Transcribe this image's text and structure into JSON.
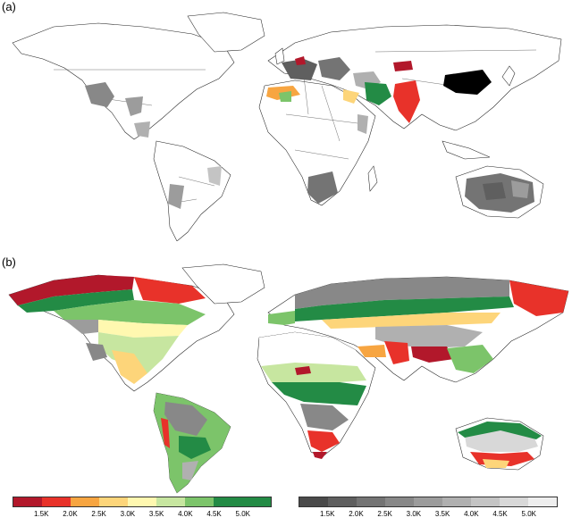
{
  "panels": {
    "a": {
      "label": "(a)"
    },
    "b": {
      "label": "(b)"
    }
  },
  "legend_color": {
    "colors": [
      "#b2182b",
      "#e8322a",
      "#f7a541",
      "#fdd57a",
      "#fff8b0",
      "#c7e6a0",
      "#7cc46a",
      "#238b45"
    ],
    "ticks": [
      "1.5K",
      "2.0K",
      "2.5K",
      "3.0K",
      "3.5K",
      "4.0K",
      "4.5K",
      "5.0K"
    ]
  },
  "legend_gray": {
    "colors": [
      "#4a4a4a",
      "#5f5f5f",
      "#747474",
      "#888888",
      "#9c9c9c",
      "#b0b0b0",
      "#c4c4c4",
      "#d8d8d8"
    ],
    "ticks": [
      "1.5K",
      "2.0K",
      "2.5K",
      "3.0K",
      "3.5K",
      "4.0K",
      "4.5K",
      "5.0K"
    ]
  }
}
